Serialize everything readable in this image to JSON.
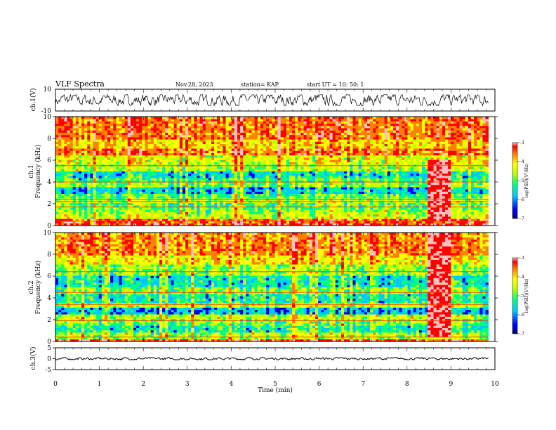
{
  "header": {
    "title": "VLF Spectra",
    "date": "Nov.28, 2023",
    "station": "station= KAP",
    "start": "start  UT =   10: 50: 1"
  },
  "chart_data": [
    {
      "type": "line",
      "name": "ch1-waveform",
      "ylabel": "ch.1(V)",
      "ylim": [
        -10,
        10
      ],
      "yticks": [
        "10",
        "-10"
      ],
      "xlim": [
        0,
        10
      ],
      "waveform_range": [
        -5,
        5
      ],
      "data_end_min": 9.85
    },
    {
      "type": "heatmap",
      "name": "ch1-spectrogram",
      "ylabel_channel": "ch.1",
      "ylabel": "Frequency (kHz)",
      "ylim": [
        0,
        10
      ],
      "yticks": [
        "0",
        "2",
        "4",
        "6",
        "8",
        "10"
      ],
      "xlim": [
        0,
        10
      ],
      "colorbar": {
        "range": [
          -7,
          -3
        ],
        "ticks": [
          "-3",
          "-4",
          "-5",
          "-6",
          "-7"
        ],
        "label": "log(PSD)(V²/Hz)"
      },
      "bands_khz": [
        {
          "f": [
            0.0,
            0.3
          ],
          "level": -3.6
        },
        {
          "f": [
            0.3,
            0.6
          ],
          "level": -3.8
        },
        {
          "f": [
            0.6,
            1.0
          ],
          "level": -4.8
        },
        {
          "f": [
            1.0,
            1.5
          ],
          "level": -5.1
        },
        {
          "f": [
            1.5,
            2.0
          ],
          "level": -5.3
        },
        {
          "f": [
            2.0,
            2.5
          ],
          "level": -4.9
        },
        {
          "f": [
            2.5,
            3.0
          ],
          "level": -5.4
        },
        {
          "f": [
            3.0,
            3.5
          ],
          "level": -5.9
        },
        {
          "f": [
            3.5,
            4.0
          ],
          "level": -5.2
        },
        {
          "f": [
            4.0,
            4.4
          ],
          "level": -5.4
        },
        {
          "f": [
            4.4,
            5.0
          ],
          "level": -5.8
        },
        {
          "f": [
            5.0,
            5.6
          ],
          "level": -5.0
        },
        {
          "f": [
            5.6,
            6.4
          ],
          "level": -4.7
        },
        {
          "f": [
            6.4,
            7.0
          ],
          "level": -3.9
        },
        {
          "f": [
            7.0,
            8.0
          ],
          "level": -4.4
        },
        {
          "f": [
            8.0,
            10.0
          ],
          "level": -3.9
        }
      ],
      "lines_khz": [
        0.4,
        1.7,
        2.2,
        2.4,
        4.0,
        5.5
      ],
      "burst_min": [
        8.45,
        9.0
      ],
      "burst_f_khz": [
        0.5,
        6.0
      ],
      "data_end_min": 9.85
    },
    {
      "type": "heatmap",
      "name": "ch2-spectrogram",
      "ylabel_channel": "ch.2",
      "ylabel": "Frequency (kHz)",
      "ylim": [
        0,
        10
      ],
      "yticks": [
        "0",
        "2",
        "4",
        "6",
        "8",
        "10"
      ],
      "xlim": [
        0,
        10
      ],
      "colorbar": {
        "range": [
          -7,
          -3
        ],
        "ticks": [
          "-3",
          "-4",
          "-5",
          "-6",
          "-7"
        ],
        "label": "log(PSD)(V²/Hz)"
      },
      "bands_khz": [
        {
          "f": [
            0.0,
            0.3
          ],
          "level": -3.6
        },
        {
          "f": [
            0.3,
            0.8
          ],
          "level": -5.0
        },
        {
          "f": [
            0.8,
            1.4
          ],
          "level": -5.6
        },
        {
          "f": [
            1.4,
            2.0
          ],
          "level": -5.2
        },
        {
          "f": [
            2.0,
            2.6
          ],
          "level": -4.9
        },
        {
          "f": [
            2.6,
            3.2
          ],
          "level": -6.0
        },
        {
          "f": [
            3.2,
            3.6
          ],
          "level": -4.9
        },
        {
          "f": [
            3.6,
            4.4
          ],
          "level": -5.6
        },
        {
          "f": [
            4.4,
            5.0
          ],
          "level": -5.2
        },
        {
          "f": [
            5.0,
            6.0
          ],
          "level": -5.7
        },
        {
          "f": [
            6.0,
            7.0
          ],
          "level": -5.1
        },
        {
          "f": [
            7.0,
            8.0
          ],
          "level": -4.5
        },
        {
          "f": [
            8.0,
            10.0
          ],
          "level": -4.0
        }
      ],
      "lines_khz": [
        0.4,
        1.9,
        3.4,
        4.5,
        6.4
      ],
      "burst_min": [
        8.45,
        9.0
      ],
      "burst_f_khz": [
        0.5,
        10.0
      ],
      "data_end_min": 9.85
    },
    {
      "type": "line",
      "name": "ch3-waveform",
      "ylabel": "ch.3(V)",
      "ylim": [
        -5,
        5
      ],
      "yticks": [
        "5",
        "0",
        "-5"
      ],
      "xlim": [
        0,
        10
      ],
      "xlabel": "Time (min)",
      "xticks": [
        "0",
        "1",
        "2",
        "3",
        "4",
        "5",
        "6",
        "7",
        "8",
        "9",
        "10"
      ],
      "waveform_range": [
        -0.5,
        0.5
      ],
      "data_end_min": 9.85
    }
  ],
  "colors": {
    "scale": [
      "#000080",
      "#0000ff",
      "#00c8ff",
      "#00ff80",
      "#c0ff00",
      "#ffff00",
      "#ff8000",
      "#ff0000",
      "#ffc0c0"
    ],
    "frame": "#000000"
  }
}
